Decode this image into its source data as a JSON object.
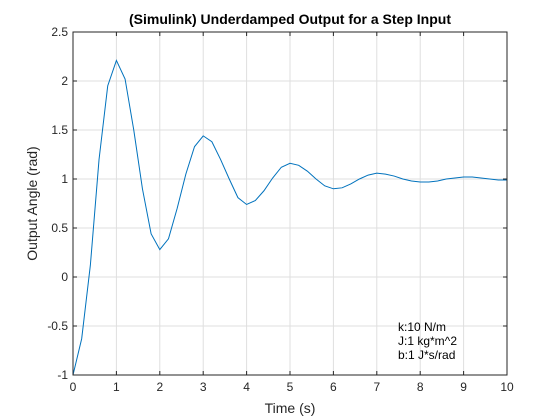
{
  "chart_data": {
    "type": "line",
    "title": "(Simulink) Underdamped Output for a Step Input",
    "xlabel": "Time (s)",
    "ylabel": "Output Angle (rad)",
    "xlim": [
      0,
      10
    ],
    "ylim": [
      -1,
      2.5
    ],
    "xticks": [
      0,
      1,
      2,
      3,
      4,
      5,
      6,
      7,
      8,
      9,
      10
    ],
    "xtick_labels": [
      "0",
      "1",
      "2",
      "3",
      "4",
      "5",
      "6",
      "7",
      "8",
      "9",
      "10"
    ],
    "yticks": [
      -1,
      -0.5,
      0,
      0.5,
      1,
      1.5,
      2,
      2.5
    ],
    "ytick_labels": [
      "-1",
      "-0.5",
      "0",
      "0.5",
      "1",
      "1.5",
      "2",
      "2.5"
    ],
    "grid": true,
    "color": "#0072bd",
    "series": [
      {
        "x": [
          0,
          0.2,
          0.4,
          0.6,
          0.8,
          1.0,
          1.2,
          1.4,
          1.6,
          1.8,
          2.0,
          2.2,
          2.4,
          2.6,
          2.8,
          3.0,
          3.2,
          3.4,
          3.6,
          3.8,
          4.0,
          4.2,
          4.4,
          4.6,
          4.8,
          5.0,
          5.2,
          5.4,
          5.6,
          5.8,
          6.0,
          6.2,
          6.4,
          6.6,
          6.8,
          7.0,
          7.2,
          7.4,
          7.6,
          7.8,
          8.0,
          8.2,
          8.4,
          8.6,
          8.8,
          9.0,
          9.2,
          9.4,
          9.6,
          9.8,
          10.0
        ],
        "y": [
          -1.0,
          -0.63,
          0.12,
          1.2,
          1.95,
          2.21,
          2.02,
          1.5,
          0.9,
          0.44,
          0.28,
          0.39,
          0.7,
          1.05,
          1.33,
          1.44,
          1.38,
          1.2,
          1.0,
          0.81,
          0.74,
          0.78,
          0.88,
          1.01,
          1.12,
          1.16,
          1.14,
          1.08,
          1.0,
          0.93,
          0.9,
          0.91,
          0.95,
          1.0,
          1.04,
          1.06,
          1.05,
          1.03,
          1.0,
          0.98,
          0.97,
          0.97,
          0.98,
          1.0,
          1.01,
          1.02,
          1.02,
          1.01,
          1.0,
          0.99,
          0.99
        ]
      }
    ],
    "annotations": [
      "k:10 N/m",
      "J:1 kg*m^2",
      "b:1 J*s/rad"
    ]
  }
}
